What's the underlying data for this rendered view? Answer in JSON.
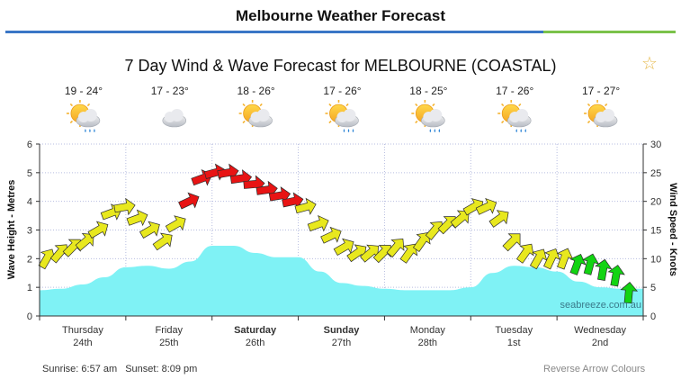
{
  "page": {
    "title": "Melbourne Weather Forecast"
  },
  "chart_data": {
    "type": "line",
    "title": "7 Day Wind & Wave Forecast for MELBOURNE (COASTAL)",
    "ylabel": "Wave Height - Metres",
    "y2label": "Wind Speed - Knots",
    "ylim": [
      0,
      6
    ],
    "y2lim": [
      0,
      30
    ],
    "yticks": [
      "0",
      "1",
      "2",
      "3",
      "4",
      "5",
      "6"
    ],
    "y2ticks": [
      "0",
      "5",
      "10",
      "15",
      "20",
      "25",
      "30"
    ],
    "grid": true,
    "watermark": "seabreeze.com.au",
    "days": [
      {
        "name": "Thursday",
        "date": "24th",
        "bold": false,
        "temp": "19 - 24°",
        "icon": "sun-cloud-rain-icon"
      },
      {
        "name": "Friday",
        "date": "25th",
        "bold": false,
        "temp": "17 - 23°",
        "icon": "cloud-icon"
      },
      {
        "name": "Saturday",
        "date": "26th",
        "bold": true,
        "temp": "18 - 26°",
        "icon": "sun-cloud-icon"
      },
      {
        "name": "Sunday",
        "date": "27th",
        "bold": true,
        "temp": "17 - 26°",
        "icon": "sun-cloud-rain-icon"
      },
      {
        "name": "Monday",
        "date": "28th",
        "bold": false,
        "temp": "18 - 25°",
        "icon": "sun-cloud-rain-icon"
      },
      {
        "name": "Tuesday",
        "date": "1st",
        "bold": false,
        "temp": "17 - 26°",
        "icon": "sun-cloud-rain-icon"
      },
      {
        "name": "Wednesday",
        "date": "2nd",
        "bold": false,
        "temp": "17 - 27°",
        "icon": "sun-cloud-icon"
      }
    ],
    "wave_height_series": {
      "name": "Wave Height",
      "unit": "m",
      "x_days": [
        0.0,
        0.25,
        0.5,
        0.75,
        1.0,
        1.25,
        1.5,
        1.75,
        2.0,
        2.25,
        2.5,
        2.75,
        3.0,
        3.25,
        3.5,
        3.75,
        4.0,
        4.25,
        4.5,
        4.75,
        5.0,
        5.25,
        5.5,
        5.75,
        6.0,
        6.25,
        6.5,
        6.75
      ],
      "values": [
        0.9,
        0.95,
        1.1,
        1.35,
        1.7,
        1.75,
        1.65,
        1.9,
        2.45,
        2.45,
        2.2,
        2.05,
        2.05,
        1.55,
        1.15,
        1.05,
        0.95,
        0.9,
        0.9,
        0.9,
        1.0,
        1.5,
        1.75,
        1.7,
        1.55,
        1.2,
        1.0,
        0.95
      ]
    },
    "wind_speed_series": {
      "name": "Wind Speed",
      "unit": "knots",
      "colors": {
        "light": "#12d412",
        "moderate": "#e8e81e",
        "strong": "#e81414"
      },
      "x_days": [
        0.0,
        0.15,
        0.3,
        0.45,
        0.6,
        0.75,
        0.9,
        1.05,
        1.2,
        1.35,
        1.5,
        1.65,
        1.8,
        1.95,
        2.1,
        2.25,
        2.4,
        2.55,
        2.7,
        2.85,
        3.0,
        3.15,
        3.3,
        3.45,
        3.6,
        3.75,
        3.9,
        4.05,
        4.2,
        4.35,
        4.5,
        4.65,
        4.8,
        4.95,
        5.1,
        5.25,
        5.4,
        5.55,
        5.7,
        5.85,
        6.0,
        6.15,
        6.3,
        6.45,
        6.6,
        6.75
      ],
      "values": [
        10,
        11,
        12,
        13,
        15,
        18,
        19,
        17,
        15,
        13,
        16,
        20,
        24,
        25,
        25,
        24,
        23,
        22,
        21,
        20,
        19,
        16,
        14,
        12,
        11,
        11,
        11,
        12,
        11,
        13,
        15,
        16,
        17,
        19,
        19,
        17,
        13,
        11,
        10,
        10,
        10,
        9,
        9,
        8,
        7,
        4
      ],
      "direction_deg": [
        210,
        220,
        225,
        230,
        240,
        250,
        260,
        250,
        240,
        235,
        240,
        245,
        250,
        255,
        260,
        262,
        265,
        262,
        260,
        258,
        255,
        250,
        245,
        240,
        235,
        230,
        225,
        220,
        215,
        215,
        220,
        225,
        230,
        240,
        245,
        235,
        225,
        215,
        210,
        205,
        200,
        200,
        195,
        190,
        190,
        185
      ]
    },
    "sunrise": "Sunrise: 6:57 am",
    "sunset": "Sunset: 8:09 pm",
    "reverse_link": "Reverse Arrow Colours"
  }
}
